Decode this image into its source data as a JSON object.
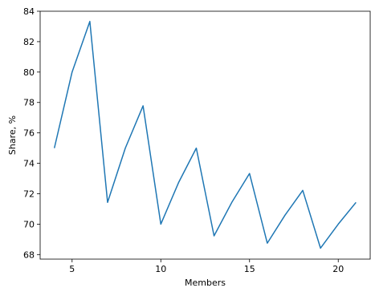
{
  "chart_data": {
    "type": "line",
    "title": "",
    "xlabel": "Members",
    "ylabel": "Share, %",
    "xlim": [
      3.2,
      21.8
    ],
    "ylim": [
      67.7,
      84.0
    ],
    "xticks": [
      5,
      10,
      15,
      20
    ],
    "yticks": [
      68,
      70,
      72,
      74,
      76,
      78,
      80,
      82,
      84
    ],
    "grid": false,
    "legend": "none",
    "series": [
      {
        "color": "#1f77b4",
        "x": [
          4,
          5,
          6,
          7,
          8,
          9,
          10,
          11,
          12,
          13,
          14,
          15,
          16,
          17,
          18,
          19,
          20,
          21
        ],
        "y": [
          75.0,
          80.0,
          83.33,
          71.43,
          75.0,
          77.78,
          70.0,
          72.73,
          75.0,
          69.23,
          71.43,
          73.33,
          68.75,
          70.59,
          72.22,
          68.42,
          70.0,
          71.43
        ]
      }
    ]
  }
}
